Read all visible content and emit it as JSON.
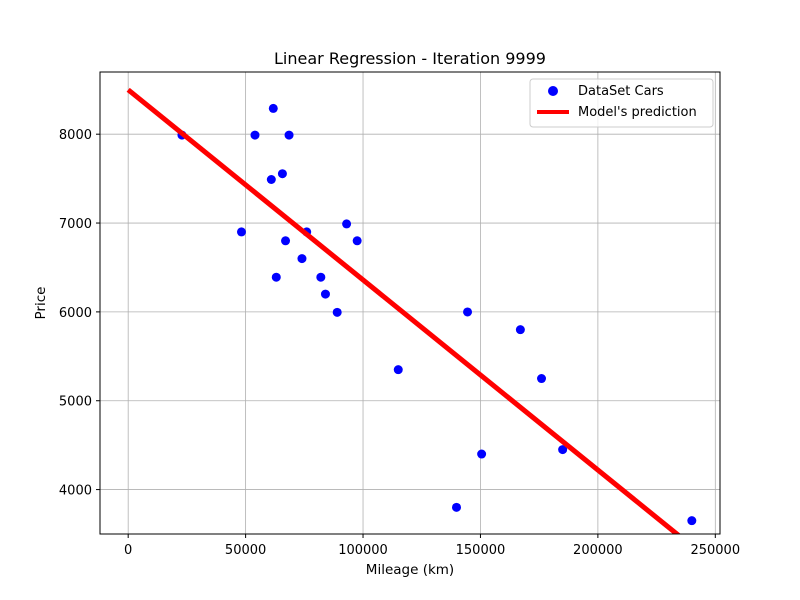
{
  "chart_data": {
    "type": "scatter",
    "title": "Linear Regression - Iteration 9999",
    "xlabel": "Mileage (km)",
    "ylabel": "Price",
    "xlim": [
      -12000,
      252000
    ],
    "ylim": [
      3500,
      8700
    ],
    "xticks": [
      0,
      50000,
      100000,
      150000,
      200000,
      250000
    ],
    "yticks": [
      4000,
      5000,
      6000,
      7000,
      8000
    ],
    "grid": true,
    "legend_position": "top-right",
    "series": [
      {
        "name": "DataSet Cars",
        "kind": "scatter",
        "color": "#0000ff",
        "points": [
          [
            22899,
            7990
          ],
          [
            48235,
            6900
          ],
          [
            54000,
            7990
          ],
          [
            61789,
            8290
          ],
          [
            60949,
            7490
          ],
          [
            65674,
            7555
          ],
          [
            67000,
            6800
          ],
          [
            68500,
            7990
          ],
          [
            63060,
            6390
          ],
          [
            74000,
            6600
          ],
          [
            76025,
            6900
          ],
          [
            82029,
            6390
          ],
          [
            84000,
            6200
          ],
          [
            89000,
            5995
          ],
          [
            93000,
            6990
          ],
          [
            97500,
            6800
          ],
          [
            115000,
            5350
          ],
          [
            139800,
            3800
          ],
          [
            144500,
            5999
          ],
          [
            150500,
            4400
          ],
          [
            167000,
            5800
          ],
          [
            176000,
            5250
          ],
          [
            185000,
            4450
          ],
          [
            240000,
            3650
          ]
        ]
      },
      {
        "name": "Model's prediction",
        "kind": "line",
        "color": "#ff0000",
        "intercept": 8500,
        "slope": -0.0214,
        "x": [
          0,
          252000
        ]
      }
    ]
  }
}
